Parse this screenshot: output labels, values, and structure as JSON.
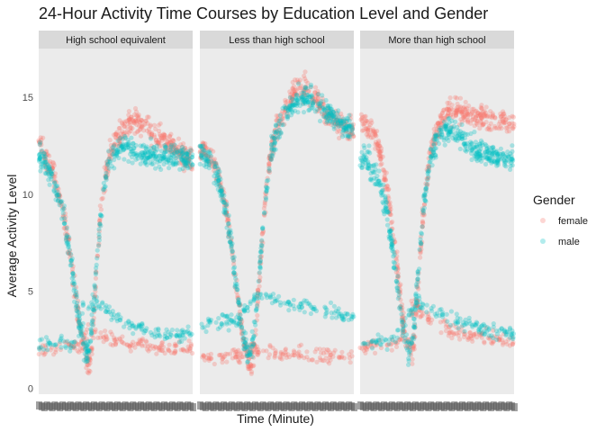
{
  "chart_data": {
    "type": "scatter",
    "title": "24-Hour Activity Time Courses by Education Level and Gender",
    "xlabel": "Time (Minute)",
    "ylabel": "Average Activity Level",
    "ylim": [
      -0.3,
      17.5
    ],
    "xlim": [
      1,
      1440
    ],
    "yticks": [
      0,
      5,
      10,
      15
    ],
    "legend": {
      "title": "Gender",
      "position": "right",
      "entries": [
        "female",
        "male"
      ]
    },
    "colors": {
      "female": "#F8766D",
      "male": "#00BFC4"
    },
    "point_alpha": 0.3,
    "panel_background": "#EBEBEB",
    "grid": false,
    "facets": [
      "High school equivalent",
      "Less than high school",
      "More than high school"
    ],
    "series_keyframes": {
      "High school equivalent": {
        "female": [
          [
            1,
            12.6
          ],
          [
            60,
            11.9
          ],
          [
            120,
            11.3
          ],
          [
            180,
            10.2
          ],
          [
            240,
            8.7
          ],
          [
            300,
            6.6
          ],
          [
            360,
            4.1
          ],
          [
            390,
            3.0
          ],
          [
            420,
            2.1
          ],
          [
            450,
            1.5
          ],
          [
            480,
            1.3
          ],
          [
            510,
            3.0
          ],
          [
            540,
            6.2
          ],
          [
            570,
            8.3
          ],
          [
            600,
            10.0
          ],
          [
            630,
            11.1
          ],
          [
            660,
            12.0
          ],
          [
            720,
            12.7
          ],
          [
            780,
            13.2
          ],
          [
            840,
            13.6
          ],
          [
            900,
            13.8
          ],
          [
            960,
            13.6
          ],
          [
            1020,
            13.4
          ],
          [
            1080,
            13.1
          ],
          [
            1140,
            12.9
          ],
          [
            1200,
            12.8
          ],
          [
            1260,
            12.5
          ],
          [
            1320,
            12.2
          ],
          [
            1380,
            11.9
          ],
          [
            1440,
            11.7
          ]
        ],
        "male": [
          [
            1,
            12.1
          ],
          [
            60,
            11.5
          ],
          [
            120,
            11.0
          ],
          [
            180,
            10.0
          ],
          [
            240,
            8.6
          ],
          [
            300,
            6.6
          ],
          [
            360,
            4.3
          ],
          [
            390,
            3.1
          ],
          [
            420,
            2.3
          ],
          [
            450,
            1.9
          ],
          [
            480,
            2.1
          ],
          [
            510,
            3.8
          ],
          [
            540,
            6.4
          ],
          [
            570,
            8.3
          ],
          [
            600,
            9.8
          ],
          [
            630,
            10.9
          ],
          [
            660,
            11.7
          ],
          [
            720,
            12.2
          ],
          [
            780,
            12.5
          ],
          [
            840,
            12.3
          ],
          [
            900,
            12.2
          ],
          [
            960,
            12.1
          ],
          [
            1020,
            12.0
          ],
          [
            1080,
            12.0
          ],
          [
            1140,
            11.9
          ],
          [
            1200,
            12.0
          ],
          [
            1260,
            12.1
          ],
          [
            1320,
            11.9
          ],
          [
            1380,
            11.8
          ],
          [
            1440,
            11.8
          ]
        ],
        "female_low": [
          [
            1,
            1.9
          ],
          [
            120,
            2.0
          ],
          [
            240,
            2.1
          ],
          [
            360,
            2.2
          ],
          [
            420,
            2.5
          ],
          [
            480,
            3.0
          ],
          [
            540,
            2.8
          ],
          [
            600,
            2.6
          ],
          [
            720,
            2.4
          ],
          [
            840,
            2.3
          ],
          [
            960,
            2.3
          ],
          [
            1080,
            2.2
          ],
          [
            1200,
            2.1
          ],
          [
            1320,
            2.1
          ],
          [
            1440,
            2.0
          ]
        ],
        "male_low": [
          [
            1,
            2.4
          ],
          [
            120,
            2.4
          ],
          [
            240,
            2.3
          ],
          [
            330,
            2.2
          ],
          [
            390,
            3.3
          ],
          [
            420,
            4.2
          ],
          [
            480,
            4.3
          ],
          [
            540,
            4.4
          ],
          [
            600,
            4.2
          ],
          [
            720,
            3.7
          ],
          [
            840,
            3.3
          ],
          [
            960,
            3.1
          ],
          [
            1080,
            2.9
          ],
          [
            1200,
            2.8
          ],
          [
            1320,
            2.8
          ],
          [
            1440,
            2.8
          ]
        ]
      },
      "Less than high school": {
        "female": [
          [
            1,
            12.5
          ],
          [
            60,
            12.1
          ],
          [
            120,
            11.8
          ],
          [
            180,
            10.8
          ],
          [
            240,
            9.4
          ],
          [
            300,
            7.3
          ],
          [
            360,
            4.5
          ],
          [
            390,
            3.1
          ],
          [
            420,
            2.0
          ],
          [
            450,
            1.4
          ],
          [
            480,
            1.2
          ],
          [
            510,
            2.2
          ],
          [
            540,
            4.4
          ],
          [
            570,
            6.7
          ],
          [
            600,
            8.9
          ],
          [
            630,
            10.6
          ],
          [
            660,
            11.9
          ],
          [
            720,
            13.2
          ],
          [
            780,
            14.1
          ],
          [
            840,
            14.9
          ],
          [
            900,
            15.4
          ],
          [
            960,
            15.5
          ],
          [
            1020,
            15.3
          ],
          [
            1080,
            15.0
          ],
          [
            1140,
            14.5
          ],
          [
            1200,
            14.1
          ],
          [
            1260,
            13.8
          ],
          [
            1320,
            13.6
          ],
          [
            1380,
            13.4
          ],
          [
            1440,
            13.3
          ]
        ],
        "male": [
          [
            1,
            12.2
          ],
          [
            60,
            11.9
          ],
          [
            120,
            11.5
          ],
          [
            180,
            10.6
          ],
          [
            240,
            9.2
          ],
          [
            300,
            7.2
          ],
          [
            360,
            4.5
          ],
          [
            390,
            3.2
          ],
          [
            420,
            2.3
          ],
          [
            450,
            1.8
          ],
          [
            480,
            1.9
          ],
          [
            510,
            2.9
          ],
          [
            540,
            4.8
          ],
          [
            570,
            7.0
          ],
          [
            600,
            9.0
          ],
          [
            630,
            10.7
          ],
          [
            660,
            12.0
          ],
          [
            720,
            13.2
          ],
          [
            780,
            14.0
          ],
          [
            840,
            14.5
          ],
          [
            900,
            14.8
          ],
          [
            960,
            14.9
          ],
          [
            1020,
            14.8
          ],
          [
            1080,
            14.6
          ],
          [
            1140,
            14.4
          ],
          [
            1200,
            14.1
          ],
          [
            1260,
            13.9
          ],
          [
            1320,
            13.7
          ],
          [
            1380,
            13.5
          ],
          [
            1440,
            13.4
          ]
        ],
        "female_low": [
          [
            1,
            1.5
          ],
          [
            120,
            1.6
          ],
          [
            240,
            1.6
          ],
          [
            330,
            1.7
          ],
          [
            390,
            1.8
          ],
          [
            420,
            2.0
          ],
          [
            480,
            2.2
          ],
          [
            540,
            2.0
          ],
          [
            600,
            1.9
          ],
          [
            720,
            1.9
          ],
          [
            840,
            1.8
          ],
          [
            960,
            1.8
          ],
          [
            1080,
            1.8
          ],
          [
            1200,
            1.7
          ],
          [
            1320,
            1.6
          ],
          [
            1440,
            1.6
          ]
        ],
        "male_low": [
          [
            1,
            3.1
          ],
          [
            120,
            3.3
          ],
          [
            240,
            3.5
          ],
          [
            330,
            3.4
          ],
          [
            390,
            3.6
          ],
          [
            420,
            4.0
          ],
          [
            480,
            4.5
          ],
          [
            540,
            4.7
          ],
          [
            600,
            4.8
          ],
          [
            720,
            4.5
          ],
          [
            840,
            4.3
          ],
          [
            960,
            4.2
          ],
          [
            1080,
            4.0
          ],
          [
            1200,
            4.0
          ],
          [
            1320,
            3.8
          ],
          [
            1440,
            3.6
          ]
        ]
      },
      "More than high school": {
        "female": [
          [
            1,
            14.0
          ],
          [
            60,
            13.5
          ],
          [
            120,
            13.2
          ],
          [
            180,
            12.3
          ],
          [
            240,
            10.8
          ],
          [
            300,
            8.5
          ],
          [
            360,
            5.6
          ],
          [
            390,
            4.0
          ],
          [
            420,
            2.8
          ],
          [
            450,
            2.0
          ],
          [
            480,
            1.7
          ],
          [
            510,
            2.7
          ],
          [
            540,
            5.2
          ],
          [
            570,
            7.6
          ],
          [
            600,
            9.6
          ],
          [
            630,
            11.0
          ],
          [
            660,
            12.2
          ],
          [
            720,
            13.3
          ],
          [
            780,
            14.0
          ],
          [
            840,
            14.3
          ],
          [
            900,
            14.3
          ],
          [
            960,
            14.2
          ],
          [
            1020,
            14.1
          ],
          [
            1080,
            14.0
          ],
          [
            1140,
            14.0
          ],
          [
            1200,
            13.9
          ],
          [
            1260,
            13.8
          ],
          [
            1320,
            13.8
          ],
          [
            1380,
            13.7
          ],
          [
            1440,
            13.6
          ]
        ],
        "male": [
          [
            1,
            11.8
          ],
          [
            60,
            11.7
          ],
          [
            120,
            11.4
          ],
          [
            180,
            10.6
          ],
          [
            240,
            9.3
          ],
          [
            300,
            7.4
          ],
          [
            360,
            5.0
          ],
          [
            390,
            3.6
          ],
          [
            420,
            2.5
          ],
          [
            450,
            1.9
          ],
          [
            480,
            2.0
          ],
          [
            510,
            3.4
          ],
          [
            540,
            5.8
          ],
          [
            570,
            7.9
          ],
          [
            600,
            9.6
          ],
          [
            630,
            10.9
          ],
          [
            660,
            11.9
          ],
          [
            720,
            12.8
          ],
          [
            780,
            13.3
          ],
          [
            840,
            13.4
          ],
          [
            900,
            13.2
          ],
          [
            960,
            12.9
          ],
          [
            1020,
            12.5
          ],
          [
            1080,
            12.2
          ],
          [
            1140,
            12.1
          ],
          [
            1200,
            12.0
          ],
          [
            1260,
            11.9
          ],
          [
            1320,
            11.9
          ],
          [
            1380,
            11.8
          ],
          [
            1440,
            11.8
          ]
        ],
        "female_low": [
          [
            1,
            2.1
          ],
          [
            120,
            2.2
          ],
          [
            240,
            2.2
          ],
          [
            330,
            2.3
          ],
          [
            390,
            2.6
          ],
          [
            420,
            3.2
          ],
          [
            480,
            4.1
          ],
          [
            540,
            4.0
          ],
          [
            600,
            3.7
          ],
          [
            720,
            3.3
          ],
          [
            840,
            3.0
          ],
          [
            960,
            2.8
          ],
          [
            1080,
            2.7
          ],
          [
            1200,
            2.6
          ],
          [
            1320,
            2.5
          ],
          [
            1440,
            2.4
          ]
        ],
        "male_low": [
          [
            1,
            2.3
          ],
          [
            120,
            2.4
          ],
          [
            240,
            2.4
          ],
          [
            330,
            2.5
          ],
          [
            390,
            3.1
          ],
          [
            420,
            3.5
          ],
          [
            480,
            4.0
          ],
          [
            540,
            4.5
          ],
          [
            600,
            4.3
          ],
          [
            720,
            3.9
          ],
          [
            840,
            3.6
          ],
          [
            960,
            3.4
          ],
          [
            1080,
            3.2
          ],
          [
            1200,
            3.0
          ],
          [
            1320,
            2.9
          ],
          [
            1440,
            2.8
          ]
        ]
      }
    }
  }
}
